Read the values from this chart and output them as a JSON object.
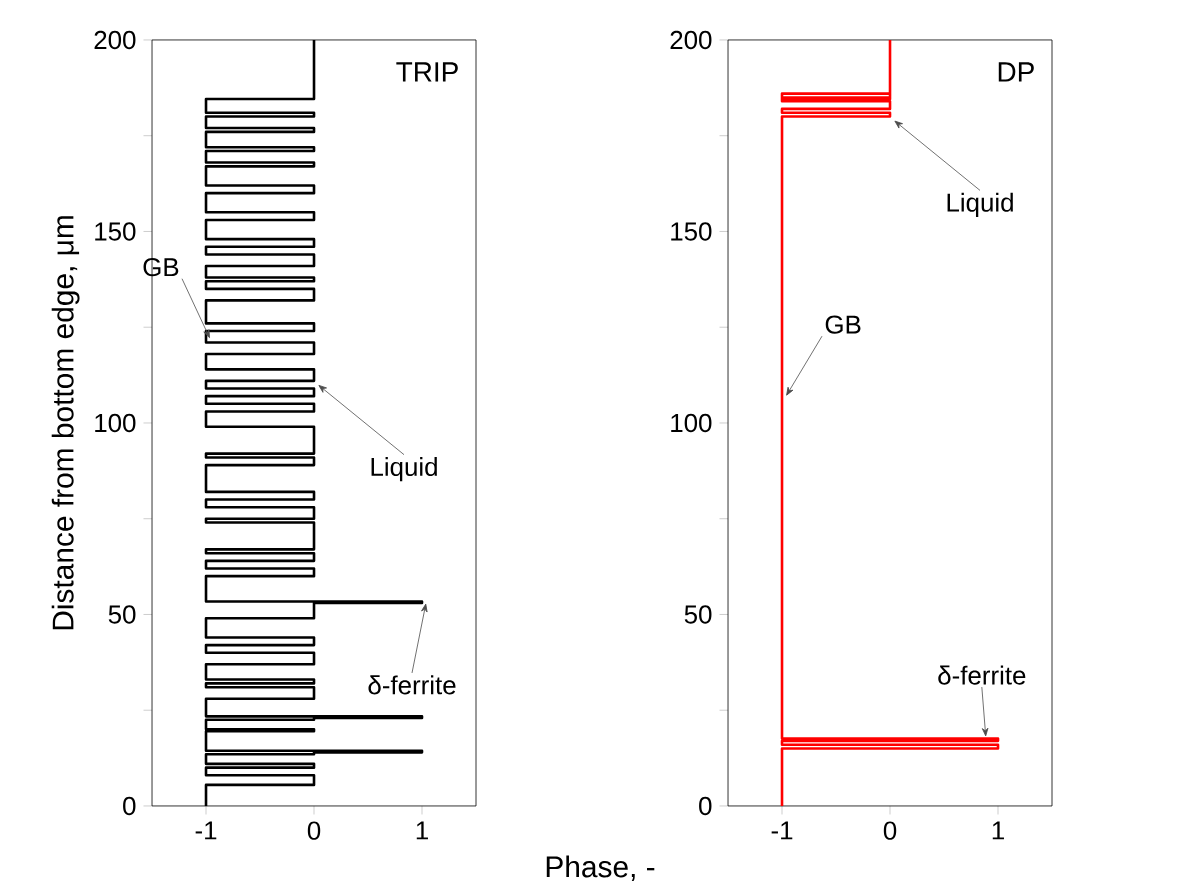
{
  "chart_data": [
    {
      "type": "line",
      "title": "TRIP",
      "xlabel": "Phase, -",
      "ylabel": "Distance from bottom edge, μm",
      "xlim": [
        -1.5,
        1.5
      ],
      "xticks": [
        -1,
        0,
        1
      ],
      "ylim": [
        0,
        200
      ],
      "yticks": [
        0,
        {
          "value": 25,
          "label": null
        },
        50,
        {
          "value": 75,
          "label": null
        },
        100,
        {
          "value": 125,
          "label": null
        },
        150,
        {
          "value": 175,
          "label": null
        },
        200
      ],
      "grid": false,
      "marker": "none",
      "line_style": "solid",
      "series": [
        {
          "color": "#000000",
          "x": [
            -1,
            -1,
            0,
            0,
            -1,
            -1,
            0,
            0,
            -1,
            -1,
            0,
            0,
            1,
            1,
            -1,
            -1,
            0,
            0,
            -1,
            -1,
            0,
            0,
            1,
            1,
            -1,
            -1,
            0,
            0,
            -1,
            -1,
            0,
            0,
            -1,
            -1,
            0,
            0,
            -1,
            -1,
            0,
            0,
            -1,
            -1,
            0,
            0,
            1,
            1,
            -1,
            -1,
            0,
            0,
            -1,
            -1,
            0,
            0,
            -1,
            -1,
            0,
            0,
            -1,
            -1,
            0,
            0,
            -1,
            -1,
            0,
            0,
            -1,
            -1,
            0,
            0,
            -1,
            -1,
            0,
            0,
            -1,
            -1,
            0,
            0,
            -1,
            -1,
            0,
            0,
            -1,
            -1,
            0,
            0,
            -1,
            -1,
            0,
            0,
            -1,
            -1,
            0,
            0,
            -1,
            -1,
            0,
            0,
            -1,
            -1,
            0,
            0,
            -1,
            -1,
            0,
            0,
            -1,
            -1,
            0,
            0,
            -1,
            -1,
            0,
            0,
            -1,
            -1,
            0,
            0,
            -1,
            -1,
            0,
            0,
            -1,
            -1,
            0,
            0,
            -1,
            -1,
            0,
            0,
            -1,
            -1,
            0,
            0,
            -1,
            -1,
            0,
            0
          ],
          "values": [
            0,
            5.5,
            5.5,
            8,
            8,
            10,
            10,
            11,
            11,
            13.5,
            13.5,
            14,
            14,
            14.4,
            14.4,
            19.5,
            19.5,
            20,
            20,
            22.5,
            22.5,
            23,
            23,
            23.4,
            23.4,
            28,
            28,
            31,
            31,
            32,
            32,
            33,
            33,
            37,
            37,
            40,
            40,
            42,
            42,
            44,
            44,
            49,
            49,
            53,
            53,
            53.4,
            53.4,
            60,
            60,
            62,
            62,
            64,
            64,
            66,
            66,
            67,
            67,
            74,
            74,
            75,
            75,
            78,
            78,
            80,
            80,
            82,
            82,
            89,
            89,
            91,
            91,
            92,
            92,
            99,
            99,
            103,
            103,
            105,
            105,
            107,
            107,
            109,
            109,
            111,
            111,
            114,
            114,
            118,
            118,
            121,
            121,
            124,
            124,
            126,
            126,
            132,
            132,
            135,
            135,
            137,
            137,
            138,
            138,
            141,
            141,
            144,
            144,
            146,
            146,
            148,
            148,
            153,
            153,
            155,
            155,
            160,
            160,
            162,
            162,
            167,
            167,
            168,
            168,
            171,
            171,
            172,
            172,
            176,
            176,
            177,
            177,
            180,
            180,
            181,
            181,
            184.6,
            184.6,
            200
          ]
        }
      ],
      "annotations": [
        {
          "text": "GB",
          "x": -1,
          "y": 122
        },
        {
          "text": "Liquid",
          "x": 0,
          "y": 110
        },
        {
          "text": "δ-ferrite",
          "x": 1,
          "y": 53
        }
      ]
    },
    {
      "type": "line",
      "title": "DP",
      "xlim": [
        -1.5,
        1.5
      ],
      "xticks": [
        -1,
        0,
        1
      ],
      "ylim": [
        0,
        200
      ],
      "yticks": [
        0,
        {
          "value": 25,
          "label": null
        },
        50,
        {
          "value": 75,
          "label": null
        },
        100,
        {
          "value": 125,
          "label": null
        },
        150,
        {
          "value": 175,
          "label": null
        },
        200
      ],
      "grid": false,
      "marker": "none",
      "line_style": "solid",
      "series": [
        {
          "color": "#ff0000",
          "x": [
            -1,
            -1,
            1,
            1,
            -1,
            -1,
            1,
            1,
            -1,
            -1,
            0,
            0,
            -1,
            -1,
            0,
            0,
            -1,
            -1,
            0,
            0,
            -1,
            -1,
            0,
            0
          ],
          "values": [
            0,
            15,
            15,
            16,
            16,
            17,
            17,
            17.6,
            17.6,
            180,
            180,
            181,
            181,
            182,
            182,
            184,
            184,
            185,
            185,
            186,
            186,
            184.5,
            184.5,
            200
          ]
        }
      ],
      "annotations": [
        {
          "text": "Liquid",
          "x": 0,
          "y": 179
        },
        {
          "text": "GB",
          "x": -1,
          "y": 107
        },
        {
          "text": "δ-ferrite",
          "x": 0.85,
          "y": 18
        }
      ]
    }
  ]
}
